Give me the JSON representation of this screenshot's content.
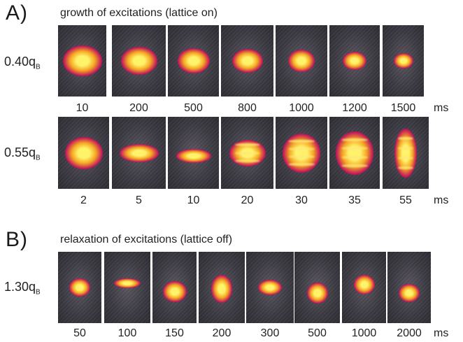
{
  "panel_a": {
    "letter": "A)",
    "caption": "growth of excitations (lattice on)",
    "rows": [
      {
        "q_value": "0.40q",
        "q_sub": "B",
        "times": [
          "10",
          "200",
          "500",
          "800",
          "1000",
          "1200",
          "1500"
        ],
        "unit": "ms"
      },
      {
        "q_value": "0.55q",
        "q_sub": "B",
        "times": [
          "2",
          "5",
          "10",
          "20",
          "30",
          "35",
          "55"
        ],
        "unit": "ms"
      }
    ]
  },
  "panel_b": {
    "letter": "B)",
    "caption": "relaxation of excitations (lattice off)",
    "row": {
      "q_value": "1.30q",
      "q_sub": "B",
      "times": [
        "50",
        "100",
        "150",
        "200",
        "300",
        "500",
        "1000",
        "2000"
      ],
      "unit": "ms"
    }
  },
  "colors": {
    "hot": "#fff36a",
    "warm": "#f5a623",
    "mid": "#c2185b",
    "cool": "#4a1a6b",
    "background": "#3a3840"
  }
}
